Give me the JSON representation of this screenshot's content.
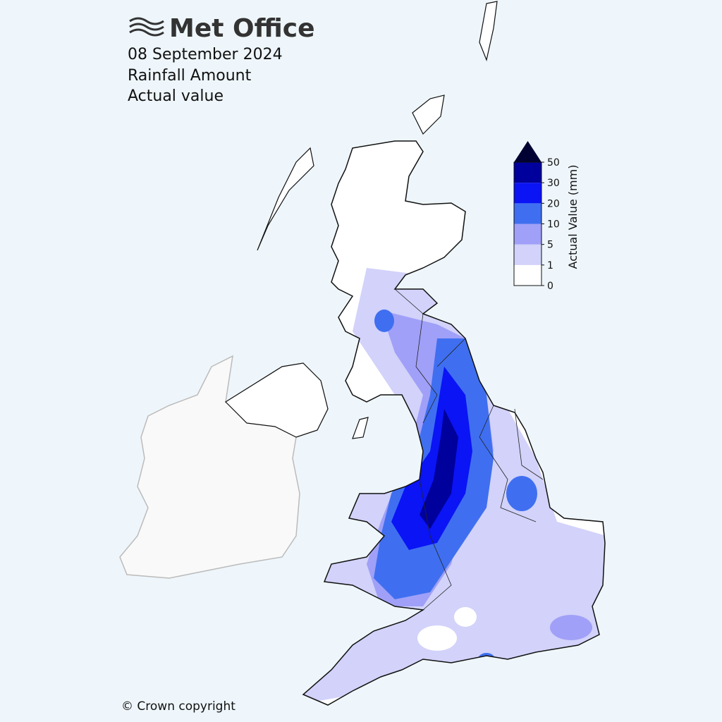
{
  "header": {
    "brand": "Met Office",
    "date": "08 September 2024",
    "title": "Rainfall Amount",
    "subtitle": "Actual value"
  },
  "legend": {
    "label": "Actual Value (mm)",
    "ticks": [
      0,
      1,
      5,
      10,
      20,
      30,
      50
    ],
    "colors": [
      "#ffffff",
      "#d2d2fa",
      "#a0a0f8",
      "#3f6ff0",
      "#0a14f5",
      "#00009c"
    ],
    "extend_color": "#000033"
  },
  "footer": {
    "copyright": "© Crown copyright"
  }
}
